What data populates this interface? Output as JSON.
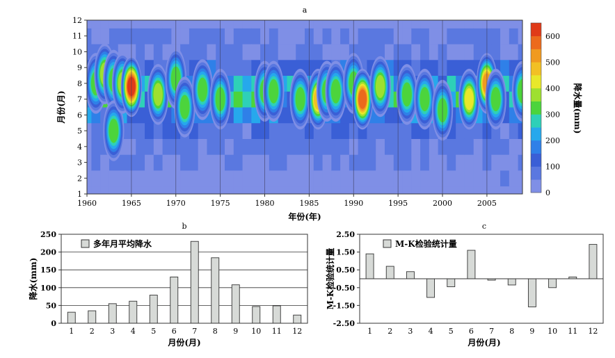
{
  "chart_data": [
    {
      "panel": "a",
      "type": "heatmap",
      "xlabel": "年份(年)",
      "ylabel": "月份(月)",
      "colorbar_label": "降水量(mm)",
      "xlim": [
        1960,
        2009
      ],
      "ylim": [
        1,
        12
      ],
      "xticks": [
        1960,
        1965,
        1970,
        1975,
        1980,
        1985,
        1990,
        1995,
        2000,
        2005
      ],
      "yticks": [
        1,
        2,
        3,
        4,
        5,
        6,
        7,
        8,
        9,
        10,
        11,
        12
      ],
      "colorbar_ticks": [
        0,
        100,
        200,
        300,
        400,
        500,
        600
      ],
      "colorbar_levels": [
        0,
        50,
        100,
        150,
        200,
        250,
        300,
        350,
        400,
        450,
        500,
        550,
        600,
        650
      ],
      "colors": [
        "#7f8fe6",
        "#5a78e0",
        "#3a5fd6",
        "#2f80e8",
        "#26a8ec",
        "#2ed0b8",
        "#4cd43c",
        "#9ee030",
        "#e8e82a",
        "#f2c024",
        "#f09a20",
        "#ec6a1c",
        "#e03a18",
        "#d41414"
      ],
      "monthly_climatology": [
        31,
        35,
        55,
        62,
        79,
        130,
        230,
        184,
        108,
        47,
        49,
        23
      ],
      "anomalies": [
        {
          "year": 1961,
          "month": 8,
          "value": 320
        },
        {
          "year": 1962,
          "month": 8.6,
          "value": 380
        },
        {
          "year": 1963,
          "month": 8.2,
          "value": 340
        },
        {
          "year": 1963,
          "month": 5,
          "value": 330
        },
        {
          "year": 1964,
          "month": 8,
          "value": 380
        },
        {
          "year": 1965,
          "month": 7.8,
          "value": 600
        },
        {
          "year": 1968,
          "month": 7.3,
          "value": 360
        },
        {
          "year": 1970,
          "month": 8.3,
          "value": 340
        },
        {
          "year": 1971,
          "month": 6.5,
          "value": 300
        },
        {
          "year": 1973,
          "month": 7.6,
          "value": 340
        },
        {
          "year": 1975,
          "month": 7,
          "value": 320
        },
        {
          "year": 1980,
          "month": 7.5,
          "value": 300
        },
        {
          "year": 1981,
          "month": 7.5,
          "value": 320
        },
        {
          "year": 1984,
          "month": 7,
          "value": 340
        },
        {
          "year": 1986,
          "month": 7,
          "value": 460
        },
        {
          "year": 1987,
          "month": 7.5,
          "value": 300
        },
        {
          "year": 1988,
          "month": 7.5,
          "value": 320
        },
        {
          "year": 1990,
          "month": 8,
          "value": 310
        },
        {
          "year": 1991,
          "month": 7,
          "value": 580
        },
        {
          "year": 1993,
          "month": 7.8,
          "value": 380
        },
        {
          "year": 1996,
          "month": 7.3,
          "value": 300
        },
        {
          "year": 1998,
          "month": 7,
          "value": 300
        },
        {
          "year": 2000,
          "month": 6.3,
          "value": 300
        },
        {
          "year": 2003,
          "month": 7,
          "value": 420
        },
        {
          "year": 2005,
          "month": 8,
          "value": 520
        },
        {
          "year": 2006,
          "month": 7,
          "value": 300
        },
        {
          "year": 2009,
          "month": 7.5,
          "value": 300
        }
      ]
    },
    {
      "panel": "b",
      "type": "bar",
      "legend": "多年月平均降水",
      "xlabel": "月份(月)",
      "ylabel": "降水(mm)",
      "categories": [
        "1",
        "2",
        "3",
        "4",
        "5",
        "6",
        "7",
        "8",
        "9",
        "10",
        "11",
        "12"
      ],
      "values": [
        31,
        35,
        55,
        62,
        79,
        130,
        230,
        184,
        108,
        47,
        49,
        23
      ],
      "ylim": [
        0,
        250
      ],
      "yticks": [
        0,
        50,
        100,
        150,
        200,
        250
      ],
      "grid": true
    },
    {
      "panel": "c",
      "type": "bar",
      "legend": "M-K检验统计量",
      "xlabel": "月份(月)",
      "ylabel": "M-K检验统计量",
      "categories": [
        "1",
        "2",
        "3",
        "4",
        "5",
        "6",
        "7",
        "8",
        "9",
        "10",
        "11",
        "12"
      ],
      "values": [
        1.4,
        0.7,
        0.4,
        -1.05,
        -0.45,
        1.6,
        -0.08,
        -0.35,
        -1.58,
        -0.5,
        0.1,
        1.93
      ],
      "ylim": [
        -2.5,
        2.5
      ],
      "yticks": [
        "-2.50",
        "-1.50",
        "-0.50",
        "0.50",
        "1.50",
        "2.50"
      ],
      "grid": false
    }
  ]
}
